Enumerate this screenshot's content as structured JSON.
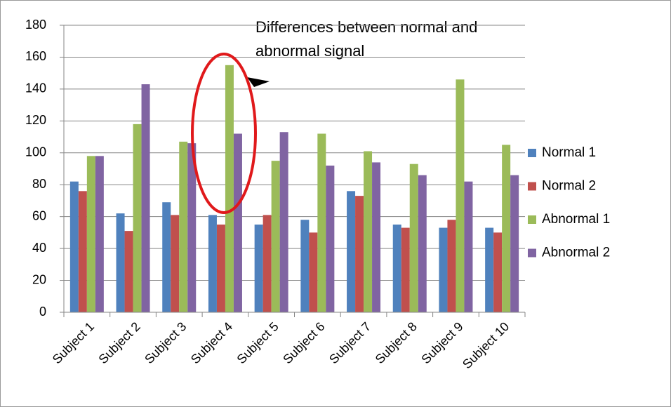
{
  "chart_data": {
    "type": "bar",
    "categories": [
      "Subject 1",
      "Subject 2",
      "Subject 3",
      "Subject 4",
      "Subject 5",
      "Subject 6",
      "Subject 7",
      "Subject 8",
      "Subject 9",
      "Subject 10"
    ],
    "series": [
      {
        "name": "Normal 1",
        "color": "#4f81bd",
        "values": [
          82,
          62,
          69,
          61,
          55,
          58,
          76,
          55,
          53,
          53
        ]
      },
      {
        "name": "Normal 2",
        "color": "#c0504d",
        "values": [
          76,
          51,
          61,
          55,
          61,
          50,
          73,
          53,
          58,
          50
        ]
      },
      {
        "name": "Abnormal 1",
        "color": "#9bbb59",
        "values": [
          98,
          118,
          107,
          155,
          95,
          112,
          101,
          93,
          146,
          105
        ]
      },
      {
        "name": "Abnormal 2",
        "color": "#8064a2",
        "values": [
          98,
          143,
          106,
          112,
          113,
          92,
          94,
          86,
          82,
          86
        ]
      }
    ],
    "ylim": [
      0,
      180
    ],
    "yticks": [
      0,
      20,
      40,
      60,
      80,
      100,
      120,
      140,
      160,
      180
    ],
    "grid": true,
    "legend": "right",
    "annotation": "Differences between normal and abnormal signal"
  }
}
